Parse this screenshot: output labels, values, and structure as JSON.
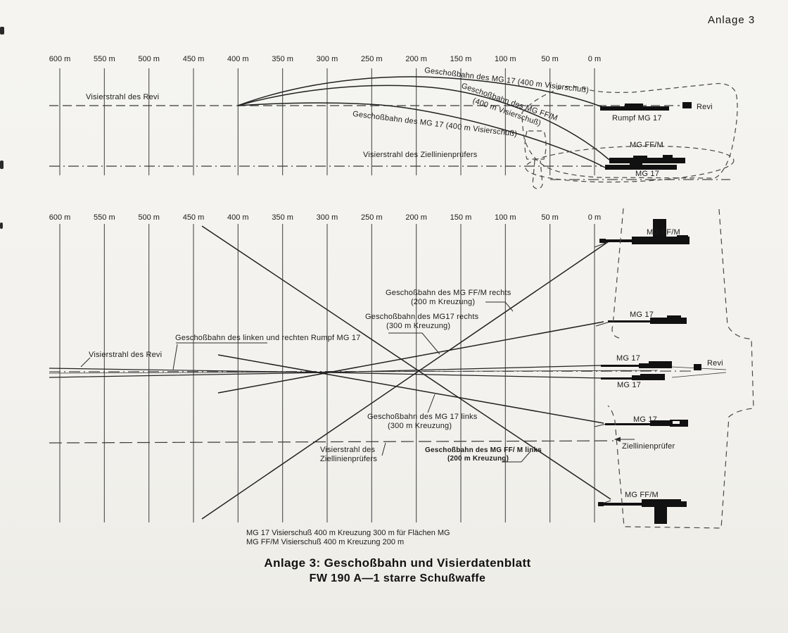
{
  "page": {
    "corner_annotation": "Anlage 3"
  },
  "top_diagram": {
    "view": "side view of FW 190 with ballistic trajectories",
    "scale_ticks": [
      "600 m",
      "550 m",
      "500 m",
      "450 m",
      "400 m",
      "350 m",
      "300 m",
      "250 m",
      "200 m",
      "150 m",
      "100 m",
      "50 m",
      "0 m"
    ],
    "labels": {
      "visierstrahl_revi": "Visierstrahl des Revi",
      "visierstrahl_ziellinienpruefer": "Visierstrahl des Ziellinienprüfers",
      "traj_rumpf_mg17": "Geschoßbahn des MG 17 (400 m Visierschuß)",
      "traj_mgffm_line1": "Geschoßbahn des MG FF/M",
      "traj_mgffm_line2": "(400 m Visierschuß)",
      "traj_wing_mg17": "Geschoßbahn des MG 17 (400 m Visierschuß)",
      "gun_rumpf_mg17": "Rumpf MG 17",
      "revi": "Revi",
      "gun_mgffm": "MG FF/M",
      "gun_mg17": "MG 17"
    }
  },
  "bottom_diagram": {
    "view": "plan view of FW 190 with convergence lines",
    "scale_ticks": [
      "600 m",
      "550 m",
      "500 m",
      "450 m",
      "400 m",
      "350 m",
      "300 m",
      "250 m",
      "200 m",
      "150 m",
      "100 m",
      "50 m",
      "0 m"
    ],
    "labels": {
      "visierstrahl_revi": "Visierstrahl des Revi",
      "traj_rumpf": "Geschoßbahn des linken und rechten Rumpf MG 17",
      "traj_ffm_rechts_line1": "Geschoßbahn des MG FF/M rechts",
      "traj_ffm_rechts_line2": "(200 m  Kreuzung)",
      "traj_mg17_rechts_line1": "Geschoßbahn des MG17 rechts",
      "traj_mg17_rechts_line2": "(300 m Kreuzung)",
      "traj_mg17_links_line1": "Geschoßbahn des MG 17 links",
      "traj_mg17_links_line2": "(300 m Kreuzung)",
      "visierstrahl_ziel_line1": "Visierstrahl des",
      "visierstrahl_ziel_line2": "Ziellinienprüfers",
      "traj_ffm_links_line1": "Geschoßbahn des MG FF/ M links",
      "traj_ffm_links_line2": "(200 m Kreuzung)",
      "gun_ffm_right": "MG FF/M",
      "gun_mg17_right": "MG 17",
      "gun_mg17_fuselage_top": "MG 17",
      "gun_mg17_fuselage_bottom": "MG 17",
      "revi": "Revi",
      "gun_mg17_left": "MG 17",
      "ziellinienpruefer": "Ziellinienprüfer",
      "gun_ffm_left": "MG FF/M"
    }
  },
  "caption": {
    "line1": "MG 17 Visierschuß 400 m Kreuzung 300 m für Flächen MG",
    "line2": "MG FF/M Visierschuß 400 m Kreuzung 200 m"
  },
  "title": {
    "line1": "Anlage 3: Geschoßbahn und Visierdatenblatt",
    "line2": "FW 190 A—1 starre Schußwaffe"
  },
  "colors": {
    "paper": "#f3f2ee",
    "ink": "#1e1e1e"
  }
}
